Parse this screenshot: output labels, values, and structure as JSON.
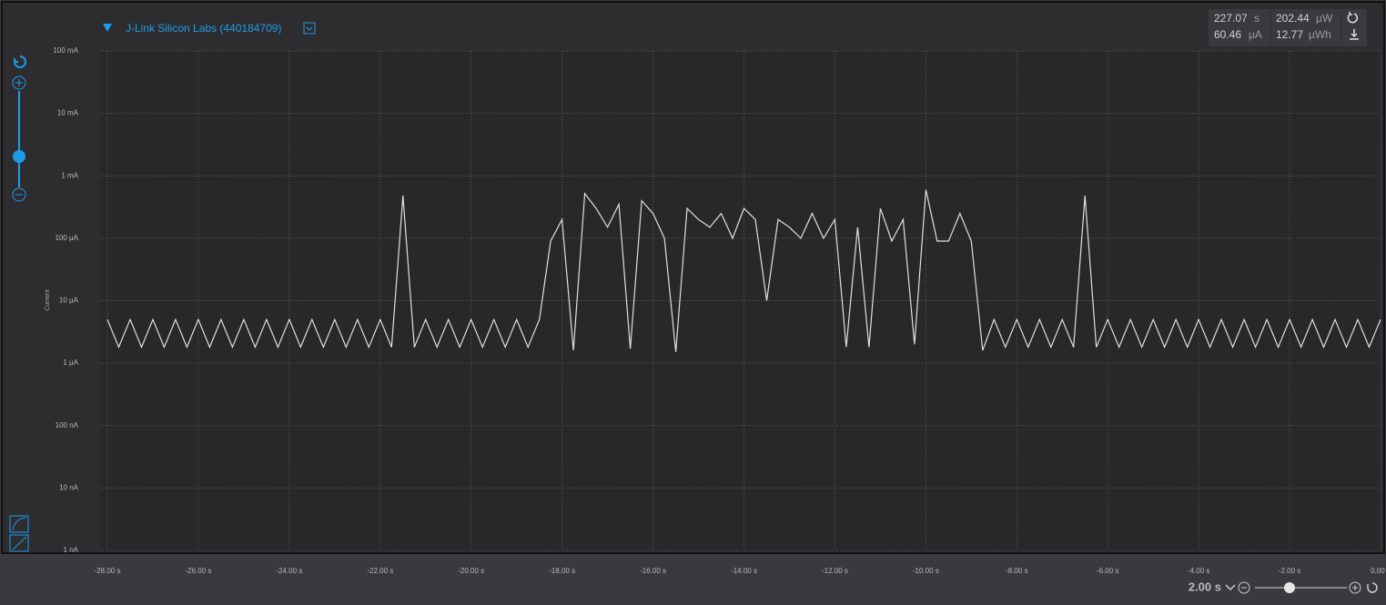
{
  "header": {
    "device": "J-Link Silicon Labs (440184709)"
  },
  "stats": {
    "time": {
      "value": 227.07,
      "unit": "s"
    },
    "avg_current": {
      "value": 60.46,
      "unit": "µA"
    },
    "avg_power": {
      "value": 202.44,
      "unit": "µW"
    },
    "energy": {
      "value": 12.77,
      "unit": "µWh"
    }
  },
  "zoom": {
    "label": "2.00 s"
  },
  "chart_data": {
    "type": "line",
    "y_label": "Current",
    "log_y": true,
    "grid": true,
    "ylim": [
      0.001,
      100000
    ],
    "yticks": [
      {
        "value": 100000,
        "label": "100 mA"
      },
      {
        "value": 10000,
        "label": "10 mA"
      },
      {
        "value": 1000,
        "label": "1 mA"
      },
      {
        "value": 100,
        "label": "100 µA"
      },
      {
        "value": 10,
        "label": "10 µA"
      },
      {
        "value": 1,
        "label": "1 µA"
      },
      {
        "value": 0.1,
        "label": "100 nA"
      },
      {
        "value": 0.01,
        "label": "10 nA"
      },
      {
        "value": 0.001,
        "label": "1 nA"
      }
    ],
    "xlim": [
      -28.16,
      0
    ],
    "xticks": [
      {
        "value": -28,
        "label": "-28.00 s"
      },
      {
        "value": -26,
        "label": "-26.00 s"
      },
      {
        "value": -24,
        "label": "-24.00 s"
      },
      {
        "value": -22,
        "label": "-22.00 s"
      },
      {
        "value": -20,
        "label": "-20.00 s"
      },
      {
        "value": -18,
        "label": "-18.00 s"
      },
      {
        "value": -16,
        "label": "-16.00 s"
      },
      {
        "value": -14,
        "label": "-14.00 s"
      },
      {
        "value": -12,
        "label": "-12.00 s"
      },
      {
        "value": -10,
        "label": "-10.00 s"
      },
      {
        "value": -8,
        "label": "-8.00 s"
      },
      {
        "value": -6,
        "label": "-6.00 s"
      },
      {
        "value": -4,
        "label": "-4.00 s"
      },
      {
        "value": -2,
        "label": "-2.00 s"
      },
      {
        "value": 0,
        "label": "0.00 s"
      }
    ],
    "x": [
      -28,
      -27.75,
      -27.5,
      -27.25,
      -27,
      -26.75,
      -26.5,
      -26.25,
      -26,
      -25.75,
      -25.5,
      -25.25,
      -25,
      -24.75,
      -24.5,
      -24.25,
      -24,
      -23.75,
      -23.5,
      -23.25,
      -23,
      -22.75,
      -22.5,
      -22.25,
      -22,
      -21.75,
      -21.5,
      -21.25,
      -21,
      -20.75,
      -20.5,
      -20.25,
      -20,
      -19.75,
      -19.5,
      -19.25,
      -19,
      -18.75,
      -18.5,
      -18.25,
      -18,
      -17.75,
      -17.5,
      -17.25,
      -17,
      -16.75,
      -16.5,
      -16.25,
      -16,
      -15.75,
      -15.5,
      -15.25,
      -15,
      -14.75,
      -14.5,
      -14.25,
      -14,
      -13.75,
      -13.5,
      -13.25,
      -13,
      -12.75,
      -12.5,
      -12.25,
      -12,
      -11.75,
      -11.5,
      -11.25,
      -11,
      -10.75,
      -10.5,
      -10.25,
      -10,
      -9.75,
      -9.5,
      -9.25,
      -9,
      -8.75,
      -8.5,
      -8.25,
      -8,
      -7.75,
      -7.5,
      -7.25,
      -7,
      -6.75,
      -6.5,
      -6.25,
      -6,
      -5.75,
      -5.5,
      -5.25,
      -5,
      -4.75,
      -4.5,
      -4.25,
      -4,
      -3.75,
      -3.5,
      -3.25,
      -3,
      -2.75,
      -2.5,
      -2.25,
      -2,
      -1.75,
      -1.5,
      -1.25,
      -1,
      -0.75,
      -0.5,
      -0.25,
      0
    ],
    "series": [
      {
        "color": "#e0e0e0",
        "values": [
          5,
          1.8,
          5,
          1.8,
          5,
          1.8,
          5,
          1.8,
          5,
          1.8,
          5,
          1.8,
          5,
          1.8,
          5,
          1.8,
          5,
          1.8,
          5,
          1.8,
          5,
          1.8,
          5,
          1.8,
          5,
          1.8,
          480,
          1.8,
          5,
          1.8,
          5,
          1.8,
          5,
          1.8,
          5,
          1.8,
          5,
          1.8,
          5,
          90,
          200,
          1.6,
          520,
          300,
          150,
          350,
          1.7,
          400,
          250,
          100,
          1.5,
          300,
          200,
          150,
          250,
          100,
          300,
          200,
          10,
          200,
          150,
          100,
          250,
          100,
          200,
          1.8,
          150,
          1.8,
          300,
          90,
          200,
          2.0,
          600,
          90,
          90,
          250,
          90,
          1.6,
          5,
          1.8,
          5,
          1.8,
          5,
          1.8,
          5,
          1.8,
          480,
          1.8,
          5,
          1.8,
          5,
          1.8,
          5,
          1.8,
          5,
          1.8,
          5,
          1.8,
          5,
          1.8,
          5,
          1.8,
          5,
          1.8,
          5,
          1.8,
          5,
          1.8,
          5,
          1.8,
          5,
          1.8,
          5
        ]
      }
    ]
  }
}
